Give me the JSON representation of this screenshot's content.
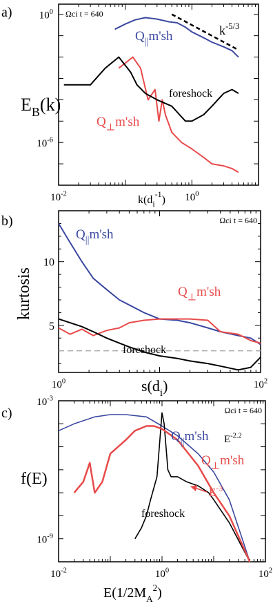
{
  "chart_data": [
    {
      "panel": "a)",
      "type": "line",
      "annotation": "Ωci t = 640",
      "xlabel": "k(d",
      "xlabel_sub": "i",
      "xlabel_sup": "-1",
      "xlabel_close": ")",
      "ylabel": "E",
      "ylabel_sub": "B",
      "ylabel_tail": "(k)",
      "xscale": "log",
      "yscale": "log",
      "xlim": [
        0.01,
        10
      ],
      "ylim": [
        1e-08,
        3
      ],
      "xticks": [
        {
          "value": 0.01,
          "base": "10",
          "exp": "-2"
        },
        {
          "value": 1,
          "base": "10",
          "exp": "0"
        }
      ],
      "yticks": [
        {
          "value": 1,
          "base": "10",
          "exp": "0"
        },
        {
          "value": 1e-06,
          "base": "10",
          "exp": "-6"
        }
      ],
      "slope_label": {
        "base": "k",
        "exp": "-5/3"
      },
      "slope_line": {
        "x": [
          0.5,
          5
        ],
        "y": [
          1.0,
          0.0215
        ]
      },
      "series": [
        {
          "name": "Q||m'sh",
          "color": "#3b48a0",
          "x": [
            0.07,
            0.1,
            0.14,
            0.2,
            0.3,
            0.45,
            0.6,
            0.8,
            1,
            1.5,
            2,
            3,
            4,
            5
          ],
          "y": [
            0.2,
            0.35,
            0.55,
            0.7,
            0.6,
            0.45,
            0.4,
            0.25,
            0.15,
            0.08,
            0.05,
            0.03,
            0.02,
            0.01
          ]
        },
        {
          "name": "Q⊥m'sh",
          "color": "#e84a4a",
          "x": [
            0.08,
            0.13,
            0.17,
            0.22,
            0.28,
            0.32,
            0.36,
            0.4,
            0.5,
            0.7,
            1,
            1.5,
            2,
            3,
            4,
            5
          ],
          "y": [
            0.003,
            0.01,
            0.003,
            0.0001,
            0.0003,
            1e-05,
            0.0001,
            2e-05,
            3e-06,
            1e-06,
            5e-07,
            2e-07,
            1e-07,
            8e-08,
            6e-08,
            4e-08
          ]
        },
        {
          "name": "foreshock",
          "color": "#000000",
          "x": [
            0.012,
            0.03,
            0.05,
            0.08,
            0.12,
            0.15,
            0.2,
            0.3,
            0.5,
            0.8,
            1,
            1.5,
            2,
            3,
            4,
            5
          ],
          "y": [
            0.0005,
            0.0005,
            0.003,
            0.01,
            0.002,
            0.0005,
            0.0002,
            0.0001,
            5e-05,
            1e-05,
            1e-05,
            2e-05,
            5e-05,
            0.0002,
            0.0003,
            0.0002
          ]
        }
      ]
    },
    {
      "panel": "b)",
      "type": "line",
      "annotation": "Ωci t = 640",
      "xlabel": "s(d",
      "xlabel_sub": "i",
      "xlabel_close": ")",
      "ylabel": "kurtosis",
      "xscale": "log",
      "yscale": "linear",
      "xlim": [
        1,
        100
      ],
      "ylim": [
        1.3,
        14
      ],
      "xticks": [
        {
          "value": 1,
          "base": "10",
          "exp": "0"
        },
        {
          "value": 100,
          "base": "10",
          "exp": "2"
        }
      ],
      "yticks": [
        5,
        10
      ],
      "reference_line": 3,
      "series": [
        {
          "name": "Q||m'sh",
          "color": "#3b48a0",
          "x": [
            1,
            1.3,
            1.7,
            2.2,
            3,
            4,
            5,
            7,
            10,
            15,
            20,
            30,
            40,
            60,
            80,
            100
          ],
          "y": [
            13,
            11.5,
            10,
            8.7,
            7.8,
            7,
            6.6,
            6,
            5.5,
            5.4,
            5.2,
            4.8,
            4.5,
            4.2,
            4,
            3.5
          ]
        },
        {
          "name": "Q⊥m'sh",
          "color": "#e84a4a",
          "x": [
            1,
            1.3,
            1.7,
            2.2,
            3,
            4,
            5,
            7,
            10,
            15,
            20,
            30,
            40,
            60,
            80,
            100
          ],
          "y": [
            4.8,
            4.3,
            4.7,
            4.2,
            4.6,
            4.8,
            5.2,
            5.4,
            5.5,
            5.5,
            5.5,
            5.4,
            4.5,
            4.3,
            3.8,
            3.6
          ]
        },
        {
          "name": "foreshock",
          "color": "#000000",
          "x": [
            1,
            1.3,
            1.7,
            2.2,
            3,
            4,
            5,
            7,
            10,
            15,
            20,
            30,
            40,
            60,
            80,
            100
          ],
          "y": [
            5.5,
            5.2,
            4.9,
            4.5,
            4,
            3.6,
            3.3,
            2.9,
            2.6,
            2.4,
            2.2,
            2,
            1.8,
            1.5,
            1.7,
            2.5
          ]
        }
      ]
    },
    {
      "panel": "c)",
      "type": "line",
      "annotation": "Ωci t = 640",
      "xlabel": "E(1/2M",
      "xlabel_sub": "A",
      "xlabel_sup": "2",
      "xlabel_close": ")",
      "ylabel": "f(E)",
      "xscale": "log",
      "yscale": "log",
      "xlim": [
        0.01,
        100
      ],
      "ylim": [
        1e-10,
        0.001
      ],
      "xticks": [
        {
          "value": 0.01,
          "base": "10",
          "exp": "-2"
        },
        {
          "value": 1,
          "base": "10",
          "exp": "0"
        },
        {
          "value": 100,
          "base": "10",
          "exp": "2"
        }
      ],
      "yticks": [
        {
          "value": 0.001,
          "base": "10",
          "exp": "-3"
        },
        {
          "value": 1e-09,
          "base": "10",
          "exp": "-9"
        }
      ],
      "slope_labels": [
        {
          "base": "E",
          "exp": "-2.2"
        },
        {
          "base": "E",
          "exp": "-3"
        }
      ],
      "series": [
        {
          "name": "Q||m'sh",
          "color": "#3b48a0",
          "x": [
            0.01,
            0.02,
            0.05,
            0.1,
            0.2,
            0.5,
            1,
            2,
            5,
            10,
            20,
            50
          ],
          "y": [
            5e-05,
            0.0001,
            0.0002,
            0.00025,
            0.00025,
            0.0002,
            8e-05,
            3e-05,
            5e-06,
            8e-07,
            5e-08,
            1e-10
          ]
        },
        {
          "name": "Q⊥m'sh",
          "color": "#e84a4a",
          "x": [
            0.02,
            0.03,
            0.04,
            0.05,
            0.07,
            0.1,
            0.2,
            0.3,
            0.5,
            0.7,
            1,
            2,
            5,
            10,
            20,
            50
          ],
          "y": [
            1e-07,
            3e-07,
            2e-06,
            1e-07,
            3e-07,
            5e-06,
            2e-05,
            5e-05,
            8e-05,
            8e-05,
            6e-05,
            2e-05,
            1.5e-06,
            1e-07,
            1e-08,
            1e-10
          ]
        },
        {
          "name": "foreshock",
          "color": "#000000",
          "x": [
            0.3,
            0.4,
            0.5,
            0.6,
            0.8,
            1,
            1.1,
            1.3,
            1.5,
            2,
            3,
            5,
            8,
            10,
            20,
            50
          ],
          "y": [
            1e-09,
            3e-09,
            1e-08,
            5e-08,
            5e-07,
            0.0003,
            0.0001,
            1e-06,
            5e-07,
            5e-07,
            3e-07,
            2e-07,
            1e-07,
            5e-08,
            5e-09,
            1e-10
          ]
        }
      ]
    }
  ],
  "panel_labels": {
    "a": {
      "label": "Q",
      "sub": "||",
      "tail": "m'sh"
    },
    "b": {
      "label": "Q",
      "sub": "⊥",
      "tail": "m'sh"
    },
    "foreshock": "foreshock"
  }
}
